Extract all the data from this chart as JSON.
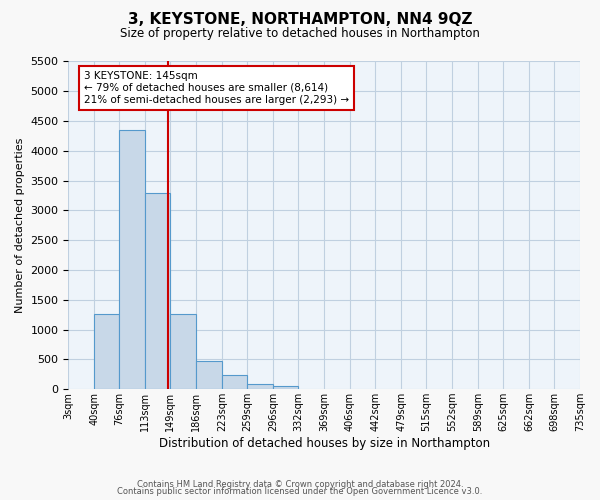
{
  "title": "3, KEYSTONE, NORTHAMPTON, NN4 9QZ",
  "subtitle": "Size of property relative to detached houses in Northampton",
  "xlabel": "Distribution of detached houses by size in Northampton",
  "ylabel": "Number of detached properties",
  "bin_edges": [
    3,
    40,
    76,
    113,
    149,
    186,
    223,
    259,
    296,
    332,
    369,
    406,
    442,
    479,
    515,
    552,
    589,
    625,
    662,
    698,
    735
  ],
  "bin_labels": [
    "3sqm",
    "40sqm",
    "76sqm",
    "113sqm",
    "149sqm",
    "186sqm",
    "223sqm",
    "259sqm",
    "296sqm",
    "332sqm",
    "369sqm",
    "406sqm",
    "442sqm",
    "479sqm",
    "515sqm",
    "552sqm",
    "589sqm",
    "625sqm",
    "662sqm",
    "698sqm",
    "735sqm"
  ],
  "bar_values": [
    0,
    1270,
    4350,
    3300,
    1270,
    480,
    230,
    90,
    50,
    0,
    0,
    0,
    0,
    0,
    0,
    0,
    0,
    0,
    0,
    0
  ],
  "bar_color": "#c8d8e8",
  "bar_edge_color": "#5599cc",
  "vline_x": 145,
  "ylim": [
    0,
    5500
  ],
  "yticks": [
    0,
    500,
    1000,
    1500,
    2000,
    2500,
    3000,
    3500,
    4000,
    4500,
    5000,
    5500
  ],
  "annotation_title": "3 KEYSTONE: 145sqm",
  "annotation_line1": "← 79% of detached houses are smaller (8,614)",
  "annotation_line2": "21% of semi-detached houses are larger (2,293) →",
  "annotation_box_color": "#ffffff",
  "annotation_box_edge": "#cc0000",
  "vline_color": "#cc0000",
  "grid_color": "#c0d0e0",
  "background_color": "#eef4fa",
  "fig_background_color": "#f8f8f8",
  "footer1": "Contains HM Land Registry data © Crown copyright and database right 2024.",
  "footer2": "Contains public sector information licensed under the Open Government Licence v3.0."
}
